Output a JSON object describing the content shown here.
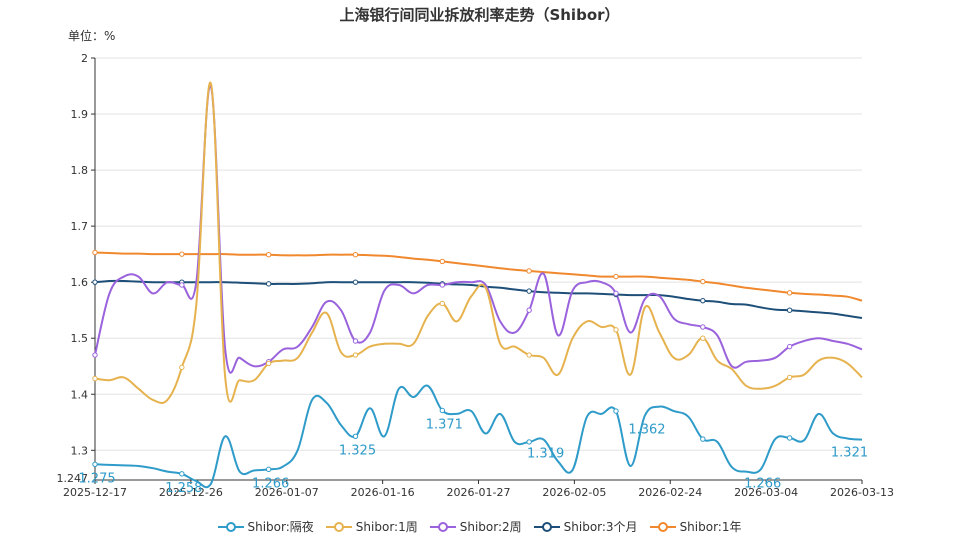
{
  "chart_data": {
    "type": "line",
    "title": "上海银行间同业拆放利率走势（Shibor）",
    "y_unit_label": "单位：%",
    "ylim": [
      1.247,
      2
    ],
    "yticks": [
      1.3,
      1.4,
      1.5,
      1.6,
      1.7,
      1.8,
      1.9,
      2
    ],
    "y_min_label": "1.247",
    "x_tick_labels": [
      "2025-12-17",
      "2025-12-26",
      "2026-01-07",
      "2026-01-16",
      "2026-01-27",
      "2026-02-05",
      "2026-02-24",
      "2026-03-04",
      "2026-03-13"
    ],
    "grid": true,
    "legend_position": "bottom",
    "n_points": 54,
    "series": [
      {
        "name": "Shibor:隔夜",
        "color": "#2e9bc9",
        "values": [
          1.275,
          1.274,
          1.273,
          1.272,
          1.268,
          1.262,
          1.258,
          1.245,
          1.24,
          1.325,
          1.262,
          1.264,
          1.266,
          1.271,
          1.3,
          1.39,
          1.385,
          1.345,
          1.325,
          1.375,
          1.325,
          1.41,
          1.395,
          1.415,
          1.371,
          1.365,
          1.37,
          1.33,
          1.365,
          1.315,
          1.315,
          1.319,
          1.28,
          1.265,
          1.36,
          1.365,
          1.37,
          1.272,
          1.362,
          1.378,
          1.37,
          1.36,
          1.32,
          1.315,
          1.27,
          1.262,
          1.266,
          1.32,
          1.322,
          1.318,
          1.365,
          1.33,
          1.321,
          1.319
        ],
        "labels": [
          {
            "index": 0,
            "text": "1.275"
          },
          {
            "index": 6,
            "text": "1.258"
          },
          {
            "index": 12,
            "text": "1.266"
          },
          {
            "index": 18,
            "text": "1.325"
          },
          {
            "index": 24,
            "text": "1.371"
          },
          {
            "index": 31,
            "text": "1.319"
          },
          {
            "index": 38,
            "text": "1.362"
          },
          {
            "index": 46,
            "text": "1.266"
          },
          {
            "index": 52,
            "text": "1.321"
          }
        ]
      },
      {
        "name": "Shibor:1周",
        "color": "#e6b24e",
        "values": [
          1.428,
          1.425,
          1.43,
          1.41,
          1.39,
          1.39,
          1.448,
          1.56,
          1.955,
          1.43,
          1.425,
          1.425,
          1.455,
          1.46,
          1.465,
          1.51,
          1.545,
          1.475,
          1.47,
          1.485,
          1.49,
          1.49,
          1.49,
          1.54,
          1.562,
          1.53,
          1.575,
          1.59,
          1.49,
          1.485,
          1.47,
          1.465,
          1.435,
          1.5,
          1.53,
          1.52,
          1.515,
          1.435,
          1.555,
          1.51,
          1.465,
          1.47,
          1.5,
          1.46,
          1.445,
          1.415,
          1.41,
          1.415,
          1.43,
          1.435,
          1.46,
          1.465,
          1.455,
          1.43
        ],
        "labels": []
      },
      {
        "name": "Shibor:2周",
        "color": "#9a62dc",
        "values": [
          1.47,
          1.58,
          1.61,
          1.61,
          1.58,
          1.6,
          1.595,
          1.6,
          1.95,
          1.48,
          1.465,
          1.45,
          1.458,
          1.48,
          1.485,
          1.52,
          1.565,
          1.55,
          1.495,
          1.51,
          1.585,
          1.595,
          1.58,
          1.595,
          1.595,
          1.6,
          1.6,
          1.595,
          1.53,
          1.51,
          1.55,
          1.615,
          1.505,
          1.585,
          1.6,
          1.6,
          1.58,
          1.51,
          1.57,
          1.575,
          1.535,
          1.525,
          1.52,
          1.505,
          1.45,
          1.458,
          1.46,
          1.465,
          1.485,
          1.495,
          1.5,
          1.495,
          1.49,
          1.48
        ],
        "labels": []
      },
      {
        "name": "Shibor:3个月",
        "color": "#1e4f78",
        "values": [
          1.6,
          1.602,
          1.602,
          1.601,
          1.6,
          1.6,
          1.6,
          1.6,
          1.6,
          1.6,
          1.599,
          1.598,
          1.597,
          1.597,
          1.597,
          1.598,
          1.6,
          1.6,
          1.6,
          1.6,
          1.6,
          1.6,
          1.6,
          1.599,
          1.597,
          1.596,
          1.595,
          1.592,
          1.59,
          1.587,
          1.584,
          1.582,
          1.581,
          1.58,
          1.58,
          1.579,
          1.578,
          1.577,
          1.577,
          1.577,
          1.574,
          1.57,
          1.567,
          1.565,
          1.561,
          1.56,
          1.555,
          1.551,
          1.55,
          1.548,
          1.546,
          1.544,
          1.54,
          1.536
        ],
        "labels": []
      },
      {
        "name": "Shibor:1年",
        "color": "#f0882e",
        "values": [
          1.653,
          1.652,
          1.651,
          1.651,
          1.65,
          1.65,
          1.65,
          1.65,
          1.65,
          1.65,
          1.649,
          1.649,
          1.649,
          1.648,
          1.648,
          1.648,
          1.649,
          1.649,
          1.649,
          1.648,
          1.647,
          1.645,
          1.642,
          1.64,
          1.637,
          1.634,
          1.631,
          1.628,
          1.625,
          1.622,
          1.62,
          1.618,
          1.616,
          1.614,
          1.612,
          1.61,
          1.61,
          1.61,
          1.61,
          1.608,
          1.606,
          1.604,
          1.601,
          1.598,
          1.594,
          1.59,
          1.587,
          1.584,
          1.581,
          1.579,
          1.578,
          1.576,
          1.574,
          1.567
        ],
        "labels": []
      }
    ]
  }
}
